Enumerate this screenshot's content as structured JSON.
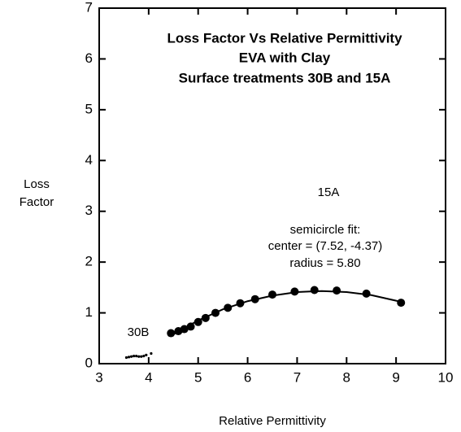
{
  "chart_data": {
    "type": "scatter",
    "title": [
      "Loss Factor Vs Relative Permittivity",
      "EVA with Clay",
      "Surface treatments 30B and 15A"
    ],
    "xlabel": "Relative Permittivity",
    "ylabel": [
      "Loss",
      "Factor"
    ],
    "annotations": [
      "15A",
      "semicircle fit:",
      "center = (7.52, -4.37)",
      "radius = 5.80",
      "30B"
    ],
    "xlim": [
      3,
      10
    ],
    "ylim": [
      0,
      7
    ],
    "xticks": [
      3,
      4,
      5,
      6,
      7,
      8,
      9,
      10
    ],
    "yticks": [
      0,
      1,
      2,
      3,
      4,
      5,
      6,
      7
    ],
    "series": [
      {
        "color": "#000000",
        "marker": "circle",
        "x": [
          4.45,
          4.6,
          4.72,
          4.85,
          5.0,
          5.15,
          5.35,
          5.6,
          5.85,
          6.15,
          6.5,
          6.95,
          7.35,
          7.8,
          8.4,
          9.1
        ],
        "values": [
          0.6,
          0.64,
          0.68,
          0.73,
          0.82,
          0.9,
          1.0,
          1.1,
          1.19,
          1.27,
          1.36,
          1.42,
          1.45,
          1.44,
          1.38,
          1.2
        ]
      },
      {
        "color": "#000000",
        "marker": "dot",
        "x": [
          3.55,
          3.6,
          3.65,
          3.7,
          3.75,
          3.8,
          3.85,
          3.9,
          3.95,
          4.05
        ],
        "values": [
          0.12,
          0.13,
          0.14,
          0.15,
          0.15,
          0.14,
          0.14,
          0.15,
          0.17,
          0.2
        ]
      },
      {
        "color": "#000000",
        "marker": "line",
        "x": [
          4.45,
          5,
          5.5,
          6,
          6.5,
          7,
          7.5,
          8,
          8.5,
          9,
          9.1
        ],
        "values": [
          0.55,
          0.85,
          1.07,
          1.23,
          1.34,
          1.41,
          1.43,
          1.41,
          1.35,
          1.24,
          1.21
        ]
      }
    ]
  }
}
